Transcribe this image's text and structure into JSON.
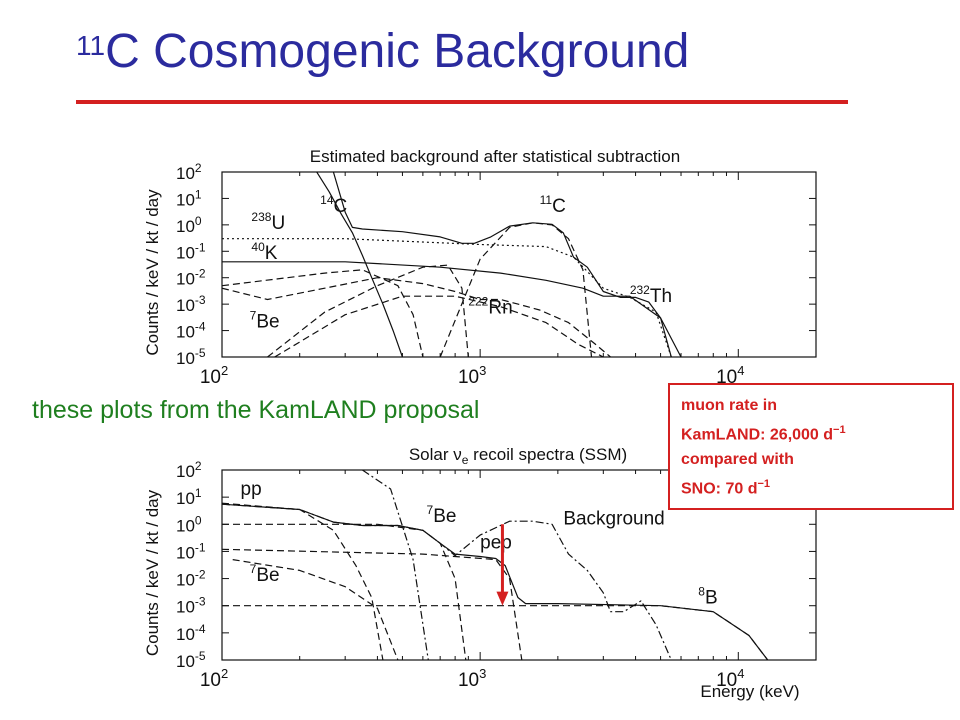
{
  "slide": {
    "title_sup": "11",
    "title_main": "C Cosmogenic Background",
    "caption": "these plots from the KamLAND proposal",
    "colors": {
      "title": "#2b2b9e",
      "rule": "#d42020",
      "caption": "#1f7f1f",
      "note": "#d42020",
      "arrow": "#d42020"
    }
  },
  "note": {
    "line1": "muon rate in",
    "line2_text": "KamLAND: 26,000 d",
    "line2_sup": "−1",
    "line3": "compared with",
    "line4_text": "SNO: 70 d",
    "line4_sup": "−1"
  },
  "chart_data": [
    {
      "type": "line",
      "title": "Estimated background after statistical subtraction",
      "ylabel": "Counts / keV / kt / day",
      "xlabel": "",
      "x_scale": "log",
      "y_scale": "log",
      "xlim": [
        100,
        20000
      ],
      "ylim": [
        1e-05,
        100
      ],
      "x_ticks": [
        {
          "base": "10",
          "exp": "2",
          "value": 100
        },
        {
          "base": "10",
          "exp": "3",
          "value": 1000
        },
        {
          "base": "10",
          "exp": "4",
          "value": 10000
        }
      ],
      "y_ticks": [
        {
          "base": "10",
          "exp": "2",
          "value": 100
        },
        {
          "base": "10",
          "exp": "1",
          "value": 10
        },
        {
          "base": "10",
          "exp": "0",
          "value": 1
        },
        {
          "base": "10",
          "exp": "-1",
          "value": 0.1
        },
        {
          "base": "10",
          "exp": "-2",
          "value": 0.01
        },
        {
          "base": "10",
          "exp": "-3",
          "value": 0.001
        },
        {
          "base": "10",
          "exp": "-4",
          "value": 0.0001
        },
        {
          "base": "10",
          "exp": "-5",
          "value": 1e-05
        }
      ],
      "annotations": [
        {
          "sup": "14",
          "text": "C",
          "x": 240,
          "y": 3
        },
        {
          "sup": "11",
          "text": "C",
          "x": 1700,
          "y": 3
        },
        {
          "sup": "238",
          "text": "U",
          "x": 130,
          "y": 0.7
        },
        {
          "sup": "40",
          "text": "K",
          "x": 130,
          "y": 0.05
        },
        {
          "sup": "7",
          "text": "Be",
          "x": 128,
          "y": 0.00013
        },
        {
          "sup": "222",
          "text": "Rn",
          "x": 900,
          "y": 0.00045
        },
        {
          "sup": "232",
          "text": "Th",
          "x": 3800,
          "y": 0.0012
        }
      ],
      "series": [
        {
          "style": "solid",
          "points": [
            [
              230,
              120
            ],
            [
              260,
              18
            ],
            [
              290,
              2.5
            ],
            [
              320,
              0.5
            ],
            [
              350,
              0.07
            ],
            [
              380,
              0.01
            ],
            [
              420,
              0.001
            ],
            [
              460,
              0.0001
            ],
            [
              500,
              1e-05
            ]
          ]
        },
        {
          "style": "solid",
          "points": [
            [
              100,
              0.04
            ],
            [
              300,
              0.04
            ],
            [
              700,
              0.025
            ],
            [
              1200,
              0.015
            ],
            [
              1800,
              0.008
            ],
            [
              2500,
              0.004
            ],
            [
              3000,
              0.002
            ],
            [
              3800,
              0.002
            ],
            [
              5000,
              0.0003
            ],
            [
              6000,
              1e-05
            ]
          ]
        },
        {
          "style": "solid",
          "points": [
            [
              270,
              100
            ],
            [
              300,
              3
            ],
            [
              320,
              0.8
            ],
            [
              350,
              0.7
            ],
            [
              500,
              0.55
            ],
            [
              700,
              0.35
            ],
            [
              850,
              0.2
            ],
            [
              950,
              0.2
            ],
            [
              1100,
              0.35
            ],
            [
              1300,
              0.9
            ],
            [
              1600,
              1.2
            ],
            [
              1900,
              1.05
            ],
            [
              2100,
              0.5
            ],
            [
              2300,
              0.06
            ],
            [
              2600,
              0.025
            ],
            [
              3000,
              0.003
            ],
            [
              3500,
              0.0018
            ],
            [
              4000,
              0.0018
            ],
            [
              4500,
              0.0012
            ],
            [
              5000,
              0.0003
            ],
            [
              5500,
              1e-05
            ]
          ]
        },
        {
          "style": "dotted",
          "points": [
            [
              100,
              0.3
            ],
            [
              300,
              0.3
            ],
            [
              1000,
              0.18
            ],
            [
              1800,
              0.15
            ],
            [
              2300,
              0.06
            ],
            [
              3000,
              0.004
            ],
            [
              3800,
              0.0018
            ],
            [
              4800,
              0.0005
            ],
            [
              5500,
              1e-05
            ]
          ]
        },
        {
          "style": "dashed",
          "points": [
            [
              100,
              0.004
            ],
            [
              150,
              0.0015
            ],
            [
              250,
              0.004
            ],
            [
              400,
              0.01
            ],
            [
              600,
              0.006
            ],
            [
              800,
              0.003
            ],
            [
              1000,
              0.0015
            ],
            [
              1200,
              0.0015
            ],
            [
              1400,
              0.001
            ],
            [
              1700,
              0.0006
            ],
            [
              2200,
              0.0002
            ],
            [
              2800,
              3e-05
            ],
            [
              3200,
              1e-05
            ]
          ]
        },
        {
          "style": "dashed",
          "points": [
            [
              100,
              0.005
            ],
            [
              250,
              0.015
            ],
            [
              350,
              0.02
            ],
            [
              480,
              0.005
            ],
            [
              550,
              0.0004
            ],
            [
              600,
              1e-05
            ]
          ]
        },
        {
          "style": "dashed",
          "points": [
            [
              150,
              1e-05
            ],
            [
              250,
              0.0005
            ],
            [
              400,
              0.005
            ],
            [
              600,
              0.025
            ],
            [
              750,
              0.03
            ],
            [
              850,
              0.004
            ],
            [
              900,
              1e-05
            ]
          ]
        },
        {
          "style": "dashed",
          "points": [
            [
              160,
              1e-05
            ],
            [
              300,
              0.0004
            ],
            [
              500,
              0.002
            ],
            [
              800,
              0.002
            ],
            [
              1200,
              0.0008
            ],
            [
              1800,
              0.0002
            ],
            [
              2400,
              3e-05
            ],
            [
              3000,
              1e-05
            ]
          ]
        },
        {
          "style": "dashed",
          "points": [
            [
              700,
              1e-05
            ],
            [
              1000,
              0.05
            ],
            [
              1300,
              0.8
            ],
            [
              1600,
              1.2
            ],
            [
              1900,
              1.0
            ],
            [
              2200,
              0.3
            ],
            [
              2500,
              0.02
            ],
            [
              2700,
              1e-05
            ]
          ]
        }
      ]
    },
    {
      "type": "line",
      "title": "Solar νe recoil spectra (SSM)",
      "ylabel": "Counts / keV / kt / day",
      "xlabel": "Energy (keV)",
      "x_scale": "log",
      "y_scale": "log",
      "xlim": [
        100,
        20000
      ],
      "ylim": [
        1e-05,
        100
      ],
      "x_ticks": [
        {
          "base": "10",
          "exp": "2",
          "value": 100
        },
        {
          "base": "10",
          "exp": "3",
          "value": 1000
        },
        {
          "base": "10",
          "exp": "4",
          "value": 10000
        }
      ],
      "y_ticks": [
        {
          "base": "10",
          "exp": "2",
          "value": 100
        },
        {
          "base": "10",
          "exp": "1",
          "value": 10
        },
        {
          "base": "10",
          "exp": "0",
          "value": 1
        },
        {
          "base": "10",
          "exp": "-1",
          "value": 0.1
        },
        {
          "base": "10",
          "exp": "-2",
          "value": 0.01
        },
        {
          "base": "10",
          "exp": "-3",
          "value": 0.001
        },
        {
          "base": "10",
          "exp": "-4",
          "value": 0.0001
        },
        {
          "base": "10",
          "exp": "-5",
          "value": 1e-05
        }
      ],
      "annotations": [
        {
          "sup": "",
          "text": "pp",
          "x": 118,
          "y": 12
        },
        {
          "sup": "7",
          "text": "Be",
          "x": 620,
          "y": 1.2
        },
        {
          "sup": "",
          "text": "Background",
          "x": 2100,
          "y": 1.0
        },
        {
          "sup": "",
          "text": "pep",
          "x": 1000,
          "y": 0.13
        },
        {
          "sup": "7",
          "text": "Be",
          "x": 128,
          "y": 0.008
        },
        {
          "sup": "8",
          "text": "B",
          "x": 7000,
          "y": 0.0012
        }
      ],
      "series": [
        {
          "style": "solid",
          "points": [
            [
              100,
              5.5
            ],
            [
              200,
              3.5
            ],
            [
              270,
              1.2
            ],
            [
              350,
              0.9
            ],
            [
              480,
              0.9
            ],
            [
              600,
              0.6
            ],
            [
              700,
              0.2
            ],
            [
              800,
              0.08
            ],
            [
              1000,
              0.065
            ],
            [
              1150,
              0.055
            ],
            [
              1250,
              0.03
            ],
            [
              1400,
              0.002
            ],
            [
              1500,
              0.0012
            ],
            [
              2000,
              0.0012
            ],
            [
              5000,
              0.001
            ],
            [
              8000,
              0.0006
            ],
            [
              11000,
              8e-05
            ],
            [
              13000,
              1e-05
            ]
          ]
        },
        {
          "style": "dashdot",
          "points": [
            [
              100,
              5.5
            ],
            [
              200,
              3.5
            ],
            [
              270,
              1.2
            ],
            [
              350,
              0.9
            ],
            [
              480,
              0.9
            ],
            [
              600,
              0.6
            ],
            [
              700,
              0.2
            ],
            [
              800,
              0.07
            ],
            [
              1000,
              0.4
            ],
            [
              1300,
              1.3
            ],
            [
              1600,
              1.3
            ],
            [
              1900,
              1.0
            ],
            [
              2200,
              0.08
            ],
            [
              2600,
              0.02
            ],
            [
              3000,
              0.003
            ],
            [
              3200,
              0.0006
            ],
            [
              3600,
              0.0006
            ],
            [
              4200,
              0.0015
            ],
            [
              4800,
              0.0002
            ],
            [
              5500,
              1e-05
            ]
          ]
        },
        {
          "style": "dashdot",
          "points": [
            [
              350,
              100
            ],
            [
              450,
              20
            ],
            [
              550,
              0.05
            ],
            [
              630,
              1e-05
            ]
          ]
        },
        {
          "style": "dashed",
          "points": [
            [
              100,
              6
            ],
            [
              200,
              3.5
            ],
            [
              270,
              0.6
            ],
            [
              330,
              0.03
            ],
            [
              380,
              0.002
            ],
            [
              420,
              1e-05
            ]
          ]
        },
        {
          "style": "dashed",
          "points": [
            [
              100,
              1
            ],
            [
              400,
              1
            ],
            [
              600,
              0.6
            ],
            [
              700,
              0.2
            ],
            [
              800,
              0.01
            ],
            [
              880,
              1e-05
            ]
          ]
        },
        {
          "style": "dashed",
          "points": [
            [
              100,
              0.12
            ],
            [
              600,
              0.08
            ],
            [
              900,
              0.06
            ],
            [
              1150,
              0.05
            ],
            [
              1300,
              0.01
            ],
            [
              1450,
              1e-05
            ]
          ]
        },
        {
          "style": "dashed",
          "points": [
            [
              100,
              0.001
            ],
            [
              3000,
              0.001
            ],
            [
              5000,
              0.001
            ],
            [
              8000,
              0.0006
            ],
            [
              11000,
              8e-05
            ],
            [
              13000,
              1e-05
            ]
          ]
        },
        {
          "style": "dashed",
          "points": [
            [
              110,
              0.05
            ],
            [
              200,
              0.02
            ],
            [
              300,
              0.005
            ],
            [
              400,
              0.0008
            ],
            [
              480,
              1e-05
            ]
          ]
        }
      ],
      "arrow": {
        "x": 1220,
        "y_from": 1.0,
        "y_to": 0.0012
      }
    }
  ]
}
